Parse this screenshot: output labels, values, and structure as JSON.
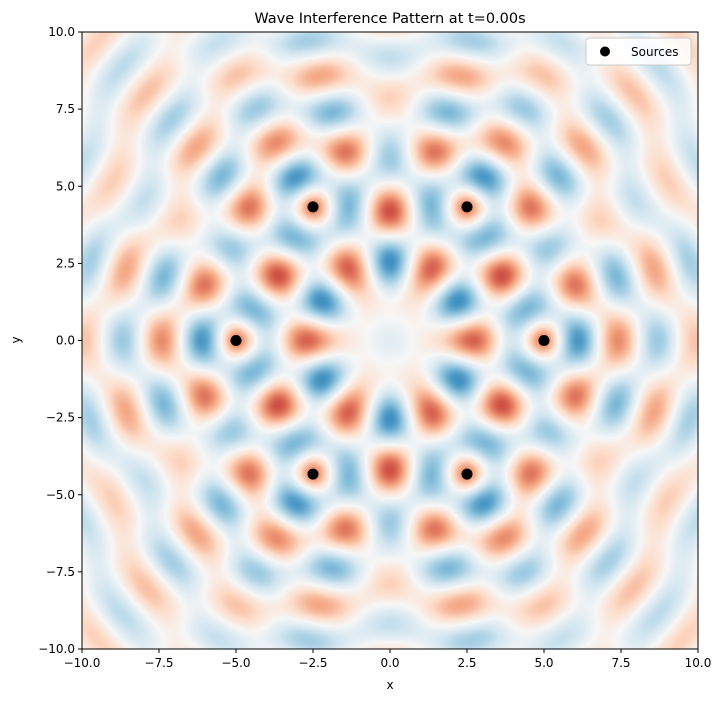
{
  "chart_data": {
    "type": "heatmap",
    "title": "Wave Interference Pattern at t=0.00s",
    "xlabel": "x",
    "ylabel": "y",
    "xlim": [
      -10,
      10
    ],
    "ylim": [
      -10,
      10
    ],
    "xticks": [
      -10,
      -7.5,
      -5,
      -2.5,
      0,
      2.5,
      5,
      7.5,
      10
    ],
    "yticks": [
      -10,
      -7.5,
      -5,
      -2.5,
      0,
      2.5,
      5,
      7.5,
      10
    ],
    "xtick_labels": [
      "−10.0",
      "−7.5",
      "−5.0",
      "−2.5",
      "0.0",
      "2.5",
      "5.0",
      "7.5",
      "10.0"
    ],
    "ytick_labels": [
      "−10.0",
      "−7.5",
      "−5.0",
      "−2.5",
      "0.0",
      "2.5",
      "5.0",
      "7.5",
      "10.0"
    ],
    "colormap": "RdBu_r",
    "grid": false,
    "legend_position": "top-right",
    "series": [
      {
        "name": "Sources",
        "type": "scatter",
        "color": "#000000",
        "points": [
          {
            "x": 5.0,
            "y": 0.0
          },
          {
            "x": 2.5,
            "y": 4.33
          },
          {
            "x": -2.5,
            "y": 4.33
          },
          {
            "x": -5.0,
            "y": 0.0
          },
          {
            "x": -2.5,
            "y": -4.33
          },
          {
            "x": 2.5,
            "y": -4.33
          }
        ]
      }
    ]
  }
}
